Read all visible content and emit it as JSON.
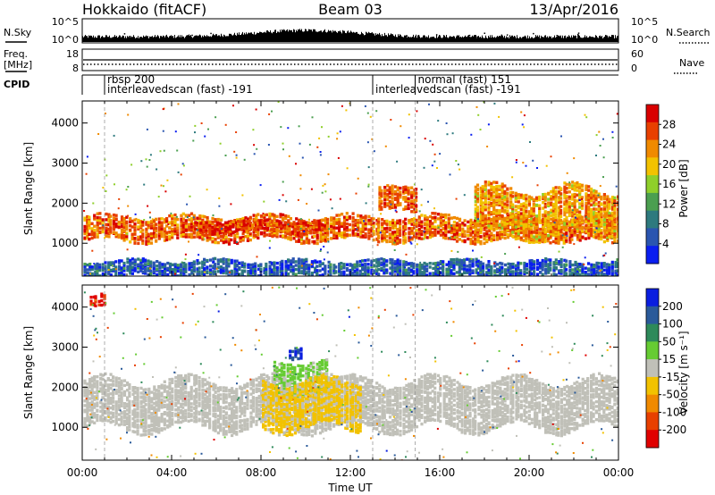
{
  "header": {
    "station": "Hokkaido (fitACF)",
    "beam": "Beam 03",
    "date": "13/Apr/2016"
  },
  "status_panels": {
    "nsky_label": "N.Sky",
    "nsearch_label": "N.Search",
    "freq_label_line1": "Freq.",
    "freq_label_line2": "[MHz]",
    "nave_label": "Nave",
    "cpid_label": "CPID",
    "noise_ticks": [
      "10^5",
      "10^0"
    ],
    "freq_ticks": [
      "18",
      "8"
    ],
    "nave_ticks": [
      "60",
      "0"
    ]
  },
  "cpid_segments": [
    {
      "start_hour": 1.0,
      "line1": "rbsp 200",
      "line2": "interleavedscan (fast) -191"
    },
    {
      "start_hour": 13.0,
      "line1": "",
      "line2": "interleavedscan (fast) -191"
    },
    {
      "start_hour": 14.9,
      "line1": "normal (fast) 151",
      "line2": ""
    }
  ],
  "chart_data": [
    {
      "type": "heatmap",
      "title": "",
      "xlabel": "Time UT",
      "ylabel": "Slant Range [km]",
      "xlim": [
        0,
        24
      ],
      "ylim": [
        180,
        4550
      ],
      "x_ticks": [
        "00:00",
        "04:00",
        "08:00",
        "12:00",
        "16:00",
        "20:00",
        "00:00"
      ],
      "y_ticks": [
        1000,
        2000,
        3000,
        4000
      ],
      "colorbar": {
        "label": "Power [dB]",
        "ticks": [
          4,
          8,
          12,
          16,
          20,
          24,
          28
        ],
        "range": [
          0,
          32
        ],
        "colors": [
          "#0a1ef0",
          "#2a55b0",
          "#2e7a7e",
          "#4b9f50",
          "#8fcf2b",
          "#f2c200",
          "#f08a00",
          "#e84000",
          "#d90000"
        ]
      },
      "features": [
        {
          "name": "main F-region band",
          "time_range": [
            0,
            24
          ],
          "range_km": [
            1100,
            1700
          ],
          "power_db": 25
        },
        {
          "name": "mid-morning high-power arc",
          "time_range": [
            5,
            11
          ],
          "range_km": [
            1300,
            1600
          ],
          "power_db": 28
        },
        {
          "name": "evening rising band",
          "time_range": [
            17.5,
            24
          ],
          "range_km": [
            1200,
            2400
          ],
          "power_db": 22
        },
        {
          "name": "post-midday echoes",
          "time_range": [
            13.2,
            15
          ],
          "range_km": [
            1800,
            2400
          ],
          "power_db": 26
        },
        {
          "name": "near-range clutter",
          "time_range": [
            0,
            24
          ],
          "range_km": [
            200,
            600
          ],
          "power_db": 6
        }
      ]
    },
    {
      "type": "heatmap",
      "title": "",
      "xlabel": "Time UT",
      "ylabel": "Slant Range [km]",
      "xlim": [
        0,
        24
      ],
      "ylim": [
        180,
        4550
      ],
      "x_ticks": [
        "00:00",
        "04:00",
        "08:00",
        "12:00",
        "16:00",
        "20:00",
        "00:00"
      ],
      "y_ticks": [
        1000,
        2000,
        3000,
        4000
      ],
      "colorbar": {
        "label": "Velocity [m s⁻¹]",
        "ticks": [
          200,
          100,
          50,
          15,
          -15,
          -50,
          -100,
          -200
        ],
        "range": [
          -250,
          250
        ],
        "colors": [
          "#0a1ee0",
          "#2a5a9a",
          "#2e8a5a",
          "#66cc33",
          "#c0c0b8",
          "#f2c200",
          "#f08a00",
          "#e84000",
          "#e00000"
        ]
      },
      "features": [
        {
          "name": "ground scatter band",
          "time_range": [
            0,
            24
          ],
          "range_km": [
            1000,
            2200
          ],
          "velocity_ms": 0
        },
        {
          "name": "positive velocity echoes",
          "time_range": [
            8.5,
            11
          ],
          "range_km": [
            1900,
            2700
          ],
          "velocity_ms": 40
        },
        {
          "name": "negative velocity patches",
          "time_range": [
            8,
            12.5
          ],
          "range_km": [
            1000,
            2200
          ],
          "velocity_ms": -40
        },
        {
          "name": "strong approaching echoes",
          "time_range": [
            9.2,
            9.8
          ],
          "range_km": [
            2700,
            3000
          ],
          "velocity_ms": 200
        },
        {
          "name": "strong receding echoes",
          "time_range": [
            0.3,
            1.0
          ],
          "range_km": [
            4100,
            4400
          ],
          "velocity_ms": -200
        }
      ]
    }
  ]
}
